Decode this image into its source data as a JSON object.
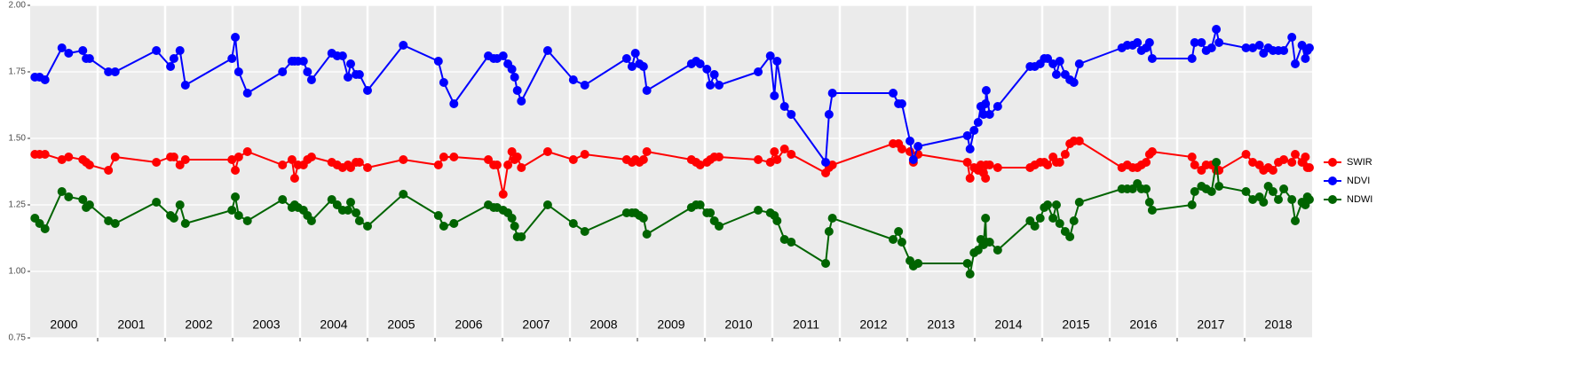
{
  "chart_data": {
    "type": "line",
    "x": [
      2000.07,
      2000.14,
      2000.22,
      2000.47,
      2000.57,
      2000.78,
      2000.83,
      2000.88,
      2001.16,
      2001.26,
      2001.87,
      2002.08,
      2002.13,
      2002.22,
      2002.3,
      2002.99,
      2003.04,
      2003.09,
      2003.22,
      2003.74,
      2003.88,
      2003.92,
      2003.97,
      2004.05,
      2004.11,
      2004.17,
      2004.47,
      2004.55,
      2004.63,
      2004.71,
      2004.75,
      2004.83,
      2004.88,
      2005.0,
      2005.53,
      2006.05,
      2006.13,
      2006.28,
      2006.79,
      2006.87,
      2006.92,
      2007.01,
      2007.08,
      2007.14,
      2007.18,
      2007.22,
      2007.28,
      2007.67,
      2008.05,
      2008.22,
      2008.84,
      2008.92,
      2008.97,
      2009.03,
      2009.09,
      2009.14,
      2009.8,
      2009.87,
      2009.93,
      2010.03,
      2010.08,
      2010.14,
      2010.21,
      2010.79,
      2010.97,
      2011.03,
      2011.07,
      2011.18,
      2011.28,
      2011.79,
      2011.84,
      2011.89,
      2012.79,
      2012.87,
      2012.92,
      2013.04,
      2013.09,
      2013.16,
      2013.89,
      2013.93,
      2013.99,
      2014.05,
      2014.09,
      2014.13,
      2014.16,
      2014.17,
      2014.22,
      2014.34,
      2014.82,
      2014.89,
      2014.97,
      2015.03,
      2015.08,
      2015.16,
      2015.21,
      2015.26,
      2015.34,
      2015.41,
      2015.47,
      2015.55,
      2016.18,
      2016.26,
      2016.34,
      2016.41,
      2016.47,
      2016.54,
      2016.59,
      2016.63,
      2017.22,
      2017.26,
      2017.36,
      2017.43,
      2017.51,
      2017.58,
      2017.62,
      2018.02,
      2018.12,
      2018.22,
      2018.28,
      2018.35,
      2018.42,
      2018.5,
      2018.58,
      2018.7,
      2018.75,
      2018.85,
      2018.9,
      2018.93,
      2018.96
    ],
    "series": [
      {
        "name": "SWIR",
        "color": "#ff0000",
        "values": [
          1.44,
          1.44,
          1.44,
          1.42,
          1.43,
          1.42,
          1.41,
          1.4,
          1.38,
          1.43,
          1.41,
          1.43,
          1.43,
          1.4,
          1.42,
          1.42,
          1.38,
          1.43,
          1.45,
          1.4,
          1.42,
          1.35,
          1.4,
          1.4,
          1.42,
          1.43,
          1.41,
          1.4,
          1.39,
          1.4,
          1.39,
          1.41,
          1.41,
          1.39,
          1.42,
          1.4,
          1.43,
          1.43,
          1.42,
          1.4,
          1.4,
          1.29,
          1.4,
          1.45,
          1.42,
          1.43,
          1.39,
          1.45,
          1.42,
          1.44,
          1.42,
          1.41,
          1.42,
          1.41,
          1.42,
          1.45,
          1.42,
          1.41,
          1.4,
          1.41,
          1.42,
          1.43,
          1.43,
          1.42,
          1.41,
          1.45,
          1.42,
          1.46,
          1.44,
          1.37,
          1.39,
          1.4,
          1.48,
          1.48,
          1.46,
          1.45,
          1.41,
          1.44,
          1.41,
          1.35,
          1.39,
          1.38,
          1.4,
          1.37,
          1.35,
          1.4,
          1.4,
          1.39,
          1.39,
          1.4,
          1.41,
          1.41,
          1.4,
          1.43,
          1.41,
          1.41,
          1.44,
          1.48,
          1.49,
          1.49,
          1.39,
          1.4,
          1.39,
          1.39,
          1.4,
          1.41,
          1.44,
          1.45,
          1.43,
          1.4,
          1.38,
          1.4,
          1.4,
          1.38,
          1.38,
          1.44,
          1.41,
          1.4,
          1.38,
          1.39,
          1.38,
          1.41,
          1.42,
          1.41,
          1.44,
          1.41,
          1.43,
          1.39,
          1.39
        ]
      },
      {
        "name": "NDVI",
        "color": "#0000ff",
        "values": [
          1.73,
          1.73,
          1.72,
          1.84,
          1.82,
          1.83,
          1.8,
          1.8,
          1.75,
          1.75,
          1.83,
          1.77,
          1.8,
          1.83,
          1.7,
          1.8,
          1.88,
          1.75,
          1.67,
          1.75,
          1.79,
          1.79,
          1.79,
          1.79,
          1.75,
          1.72,
          1.82,
          1.81,
          1.81,
          1.73,
          1.78,
          1.74,
          1.74,
          1.68,
          1.85,
          1.79,
          1.71,
          1.63,
          1.81,
          1.8,
          1.8,
          1.81,
          1.78,
          1.76,
          1.73,
          1.68,
          1.64,
          1.83,
          1.72,
          1.7,
          1.8,
          1.77,
          1.82,
          1.78,
          1.77,
          1.68,
          1.78,
          1.79,
          1.78,
          1.76,
          1.7,
          1.74,
          1.7,
          1.75,
          1.81,
          1.66,
          1.79,
          1.62,
          1.59,
          1.41,
          1.59,
          1.67,
          1.67,
          1.63,
          1.63,
          1.49,
          1.42,
          1.47,
          1.51,
          1.46,
          1.53,
          1.56,
          1.62,
          1.59,
          1.63,
          1.68,
          1.59,
          1.62,
          1.77,
          1.77,
          1.78,
          1.8,
          1.8,
          1.78,
          1.74,
          1.79,
          1.74,
          1.72,
          1.71,
          1.78,
          1.84,
          1.85,
          1.85,
          1.86,
          1.83,
          1.84,
          1.86,
          1.8,
          1.8,
          1.86,
          1.86,
          1.83,
          1.84,
          1.91,
          1.86,
          1.84,
          1.84,
          1.85,
          1.82,
          1.84,
          1.83,
          1.83,
          1.83,
          1.88,
          1.78,
          1.85,
          1.8,
          1.83,
          1.84
        ]
      },
      {
        "name": "NDWI",
        "color": "#006400",
        "values": [
          1.2,
          1.18,
          1.16,
          1.3,
          1.28,
          1.27,
          1.24,
          1.25,
          1.19,
          1.18,
          1.26,
          1.21,
          1.2,
          1.25,
          1.18,
          1.23,
          1.28,
          1.21,
          1.19,
          1.27,
          1.24,
          1.25,
          1.24,
          1.23,
          1.21,
          1.19,
          1.27,
          1.25,
          1.23,
          1.23,
          1.26,
          1.22,
          1.19,
          1.17,
          1.29,
          1.21,
          1.17,
          1.18,
          1.25,
          1.24,
          1.24,
          1.23,
          1.22,
          1.2,
          1.17,
          1.13,
          1.13,
          1.25,
          1.18,
          1.15,
          1.22,
          1.22,
          1.22,
          1.21,
          1.2,
          1.14,
          1.24,
          1.25,
          1.25,
          1.22,
          1.22,
          1.19,
          1.17,
          1.23,
          1.22,
          1.21,
          1.19,
          1.12,
          1.11,
          1.03,
          1.15,
          1.2,
          1.12,
          1.15,
          1.11,
          1.04,
          1.02,
          1.03,
          1.03,
          0.99,
          1.07,
          1.08,
          1.12,
          1.1,
          1.2,
          1.11,
          1.11,
          1.08,
          1.19,
          1.17,
          1.2,
          1.24,
          1.25,
          1.2,
          1.25,
          1.18,
          1.15,
          1.13,
          1.19,
          1.26,
          1.31,
          1.31,
          1.31,
          1.33,
          1.31,
          1.31,
          1.26,
          1.23,
          1.25,
          1.3,
          1.32,
          1.31,
          1.3,
          1.41,
          1.32,
          1.3,
          1.27,
          1.28,
          1.26,
          1.32,
          1.3,
          1.27,
          1.31,
          1.27,
          1.19,
          1.26,
          1.25,
          1.28,
          1.27
        ]
      }
    ],
    "xlim": [
      2000,
      2019
    ],
    "xticks": [
      2001,
      2002,
      2003,
      2004,
      2005,
      2006,
      2007,
      2008,
      2009,
      2010,
      2011,
      2012,
      2013,
      2014,
      2015,
      2016,
      2017,
      2018
    ],
    "year_labels": [
      {
        "value": 2000.5,
        "label": "2000"
      },
      {
        "value": 2001.5,
        "label": "2001"
      },
      {
        "value": 2002.5,
        "label": "2002"
      },
      {
        "value": 2003.5,
        "label": "2003"
      },
      {
        "value": 2004.5,
        "label": "2004"
      },
      {
        "value": 2005.5,
        "label": "2005"
      },
      {
        "value": 2006.5,
        "label": "2006"
      },
      {
        "value": 2007.5,
        "label": "2007"
      },
      {
        "value": 2008.5,
        "label": "2008"
      },
      {
        "value": 2009.5,
        "label": "2009"
      },
      {
        "value": 2010.5,
        "label": "2010"
      },
      {
        "value": 2011.5,
        "label": "2011"
      },
      {
        "value": 2012.5,
        "label": "2012"
      },
      {
        "value": 2013.5,
        "label": "2013"
      },
      {
        "value": 2014.5,
        "label": "2014"
      },
      {
        "value": 2015.5,
        "label": "2015"
      },
      {
        "value": 2016.5,
        "label": "2016"
      },
      {
        "value": 2017.5,
        "label": "2017"
      },
      {
        "value": 2018.5,
        "label": "2018"
      }
    ],
    "ylim": [
      0.75,
      2.0
    ],
    "yticks": [
      0.75,
      {
        "value": 1,
        "label": "1.00"
      },
      1.25,
      {
        "value": 1.5,
        "label": "1.50"
      },
      1.75,
      {
        "value": 2,
        "label": "2.00"
      }
    ],
    "grid": true
  }
}
